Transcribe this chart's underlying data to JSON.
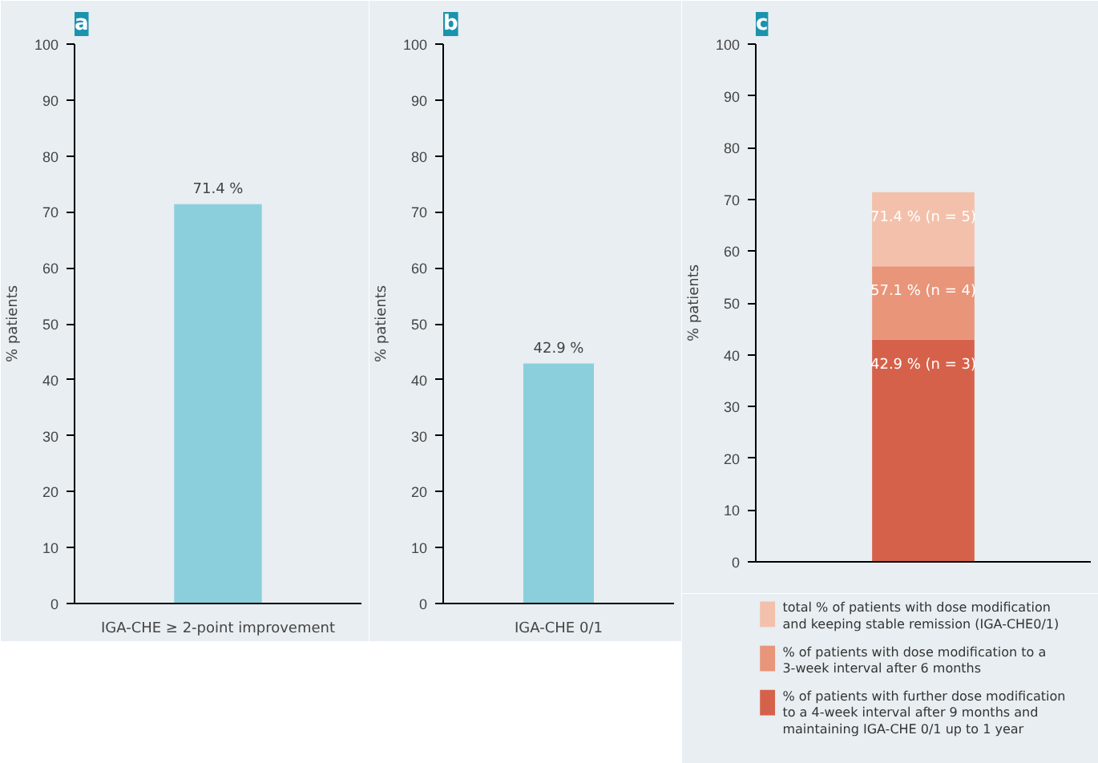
{
  "chart_data": [
    {
      "type": "bar",
      "title": "a",
      "categories": [
        "IGA-CHE ≥ 2-point improvement"
      ],
      "values": [
        71.4
      ],
      "color": "#8ccfdc",
      "value_labels": [
        "71.4 %"
      ],
      "ylabel": "% patients",
      "ylim": [
        0,
        100
      ],
      "yticks": [
        0,
        10,
        20,
        30,
        40,
        50,
        60,
        70,
        80,
        90,
        100
      ]
    },
    {
      "type": "bar",
      "title": "b",
      "categories": [
        "IGA-CHE 0/1"
      ],
      "values": [
        42.9
      ],
      "color": "#8ccfdc",
      "value_labels": [
        "42.9 %"
      ],
      "ylabel": "% patients",
      "ylim": [
        0,
        100
      ],
      "yticks": [
        0,
        10,
        20,
        30,
        40,
        50,
        60,
        70,
        80,
        90,
        100
      ]
    },
    {
      "type": "bar",
      "title": "c",
      "categories": [
        null
      ],
      "stacked": true,
      "legend": "bottom",
      "annotations": [
        {
          "text": "42.9 % (n = 3)",
          "y": 42.9
        },
        {
          "text": "57.1 % (n = 4)",
          "y": 57.1
        },
        {
          "text": "71.4 % (n = 5)",
          "y": 71.4
        }
      ],
      "ylabel": "% patients",
      "ylim": [
        0,
        100
      ],
      "yticks": [
        0,
        10,
        20,
        30,
        40,
        50,
        60,
        70,
        80,
        90,
        100
      ],
      "series": [
        {
          "name": "% of patients with further dose modification to a 4-week interval after 9 months and maintaining IGA-CHE 0/1 up to 1 year",
          "color": "#d6614a",
          "values": [
            42.9
          ]
        },
        {
          "name": "% of patients with dose modification to a 3-week interval after 6 months",
          "color": "#e8957a",
          "values": [
            14.2
          ]
        },
        {
          "name": "total % of patients with dose modification and keeping stable remission (IGA-CHE0/1)",
          "color": "#f3c1ab",
          "values": [
            14.3
          ]
        }
      ]
    }
  ]
}
